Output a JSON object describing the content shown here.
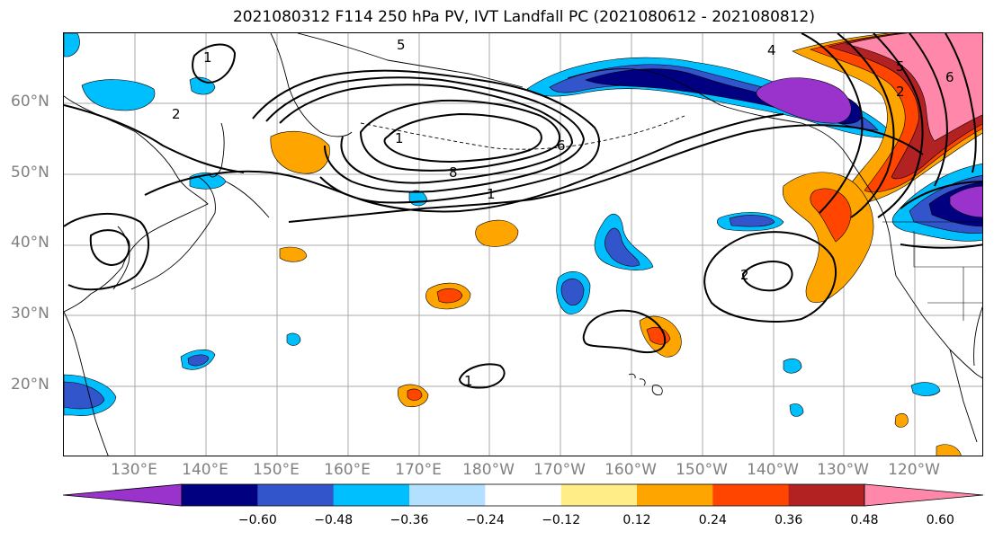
{
  "title": "2021080312 F114 250 hPa PV, IVT Landfall PC (2021080612 - 2021080812)",
  "map": {
    "lat_labels": [
      "60°N",
      "50°N",
      "40°N",
      "30°N",
      "20°N"
    ],
    "lon_labels": [
      "130°E",
      "140°E",
      "150°E",
      "160°E",
      "170°E",
      "180°W",
      "170°W",
      "160°W",
      "150°W",
      "140°W",
      "130°W",
      "120°W"
    ],
    "contour_labels": [
      "5",
      "1",
      "2",
      "8",
      "6",
      "1",
      "1",
      "4",
      "2",
      "5",
      "2",
      "6",
      "1"
    ]
  },
  "colorbar": {
    "colors": [
      "#9933cc",
      "#000080",
      "#3355cc",
      "#00bfff",
      "#b3e0ff",
      "#ffffff",
      "#ffee88",
      "#ffa500",
      "#ff4500",
      "#b22222",
      "#ff88aa"
    ],
    "tick_labels": [
      "−0.60",
      "−0.48",
      "−0.36",
      "−0.24",
      "−0.12",
      "0.12",
      "0.24",
      "0.36",
      "0.48",
      "0.60"
    ]
  }
}
